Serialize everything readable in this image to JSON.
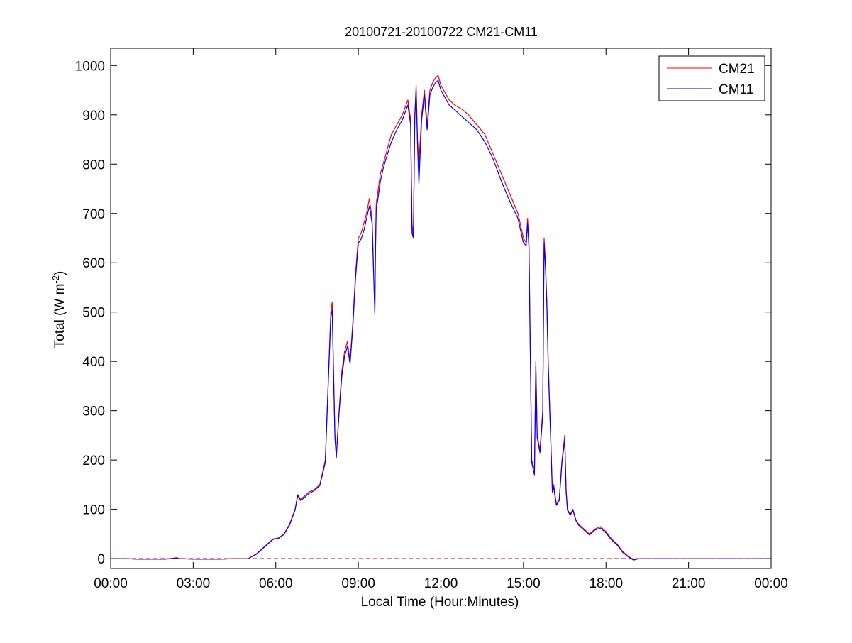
{
  "chart_data": {
    "type": "line",
    "title": "20100721-20100722 CM21-CM11",
    "xlabel": "Local Time (Hour:Minutes)",
    "ylabel_main": "Total (W m",
    "ylabel_sup": "-2",
    "ylabel_close": ")",
    "xlim_hours": [
      0,
      24
    ],
    "ylim": [
      -20,
      1035
    ],
    "x_ticks": [
      {
        "hour": 0,
        "label": "00:00"
      },
      {
        "hour": 3,
        "label": "03:00"
      },
      {
        "hour": 6,
        "label": "06:00"
      },
      {
        "hour": 9,
        "label": "09:00"
      },
      {
        "hour": 12,
        "label": "12:00"
      },
      {
        "hour": 15,
        "label": "15:00"
      },
      {
        "hour": 18,
        "label": "18:00"
      },
      {
        "hour": 21,
        "label": "21:00"
      },
      {
        "hour": 24,
        "label": "00:00"
      }
    ],
    "y_ticks": [
      0,
      100,
      200,
      300,
      400,
      500,
      600,
      700,
      800,
      900,
      1000
    ],
    "legend_position": "top-right",
    "zero_line": {
      "value": 0,
      "color": "#cc0000",
      "style": "dashed"
    },
    "series": [
      {
        "name": "CM21",
        "color": "#ff0000",
        "x_hours": [
          0,
          0.5,
          1,
          2,
          2.4,
          2.5,
          3,
          4,
          4.5,
          5,
          5.3,
          5.6,
          5.9,
          6.1,
          6.3,
          6.5,
          6.7,
          6.8,
          6.9,
          7.0,
          7.2,
          7.4,
          7.6,
          7.8,
          7.9,
          8.0,
          8.05,
          8.1,
          8.15,
          8.2,
          8.3,
          8.4,
          8.5,
          8.6,
          8.7,
          8.8,
          8.9,
          9.0,
          9.1,
          9.2,
          9.3,
          9.4,
          9.5,
          9.6,
          9.62,
          9.65,
          9.7,
          9.8,
          9.9,
          10.0,
          10.2,
          10.4,
          10.6,
          10.8,
          10.9,
          10.95,
          11.0,
          11.05,
          11.1,
          11.15,
          11.2,
          11.3,
          11.4,
          11.5,
          11.6,
          11.7,
          11.8,
          11.9,
          12.0,
          12.1,
          12.3,
          12.5,
          12.8,
          13.0,
          13.3,
          13.6,
          13.9,
          14.2,
          14.5,
          14.8,
          15.0,
          15.1,
          15.15,
          15.2,
          15.3,
          15.4,
          15.45,
          15.5,
          15.6,
          15.7,
          15.75,
          15.8,
          15.85,
          15.9,
          16.0,
          16.05,
          16.1,
          16.15,
          16.2,
          16.3,
          16.4,
          16.5,
          16.55,
          16.6,
          16.7,
          16.8,
          16.9,
          17.0,
          17.2,
          17.4,
          17.6,
          17.8,
          18.0,
          18.2,
          18.4,
          18.6,
          18.8,
          19.0,
          19.2,
          19.5,
          20,
          21,
          22,
          23,
          24
        ],
        "values": [
          0,
          0,
          -1,
          -1,
          2,
          0,
          -1,
          -1,
          0,
          0,
          10,
          25,
          40,
          42,
          50,
          70,
          100,
          130,
          120,
          125,
          135,
          140,
          150,
          200,
          350,
          500,
          520,
          380,
          250,
          210,
          300,
          380,
          420,
          440,
          400,
          480,
          580,
          650,
          660,
          680,
          700,
          730,
          690,
          500,
          620,
          720,
          740,
          780,
          800,
          820,
          860,
          880,
          900,
          930,
          890,
          680,
          650,
          900,
          960,
          850,
          800,
          900,
          950,
          880,
          950,
          965,
          975,
          980,
          960,
          950,
          930,
          920,
          910,
          900,
          880,
          860,
          820,
          780,
          740,
          700,
          650,
          640,
          690,
          640,
          200,
          180,
          400,
          250,
          220,
          300,
          650,
          600,
          520,
          400,
          230,
          140,
          150,
          130,
          110,
          120,
          200,
          250,
          140,
          100,
          90,
          100,
          80,
          70,
          60,
          50,
          60,
          65,
          55,
          40,
          30,
          15,
          5,
          -2,
          0,
          0,
          0,
          0,
          0,
          0,
          0
        ]
      },
      {
        "name": "CM11",
        "color": "#0000ff",
        "x_hours": [
          0,
          0.5,
          1,
          2,
          2.4,
          2.5,
          3,
          4,
          4.5,
          5,
          5.3,
          5.6,
          5.9,
          6.1,
          6.3,
          6.5,
          6.7,
          6.8,
          6.9,
          7.0,
          7.2,
          7.4,
          7.6,
          7.8,
          7.9,
          8.0,
          8.05,
          8.1,
          8.15,
          8.2,
          8.3,
          8.4,
          8.5,
          8.6,
          8.7,
          8.8,
          8.9,
          9.0,
          9.1,
          9.2,
          9.3,
          9.4,
          9.5,
          9.6,
          9.62,
          9.65,
          9.7,
          9.8,
          9.9,
          10.0,
          10.2,
          10.4,
          10.6,
          10.8,
          10.9,
          10.95,
          11.0,
          11.05,
          11.1,
          11.15,
          11.2,
          11.3,
          11.4,
          11.5,
          11.6,
          11.7,
          11.8,
          11.9,
          12.0,
          12.1,
          12.3,
          12.5,
          12.8,
          13.0,
          13.3,
          13.6,
          13.9,
          14.2,
          14.5,
          14.8,
          15.0,
          15.1,
          15.15,
          15.2,
          15.3,
          15.4,
          15.45,
          15.5,
          15.6,
          15.7,
          15.75,
          15.8,
          15.85,
          15.9,
          16.0,
          16.05,
          16.1,
          16.15,
          16.2,
          16.3,
          16.4,
          16.5,
          16.55,
          16.6,
          16.7,
          16.8,
          16.9,
          17.0,
          17.2,
          17.4,
          17.6,
          17.8,
          18.0,
          18.2,
          18.4,
          18.6,
          18.8,
          19.0,
          19.2,
          19.5,
          20,
          21,
          22,
          23,
          24
        ],
        "values": [
          0,
          0,
          -1,
          -1,
          1,
          0,
          -1,
          -1,
          0,
          0,
          9,
          24,
          39,
          41,
          49,
          68,
          98,
          128,
          118,
          122,
          132,
          138,
          148,
          195,
          345,
          490,
          505,
          370,
          245,
          205,
          295,
          370,
          410,
          430,
          395,
          470,
          570,
          640,
          648,
          665,
          690,
          715,
          680,
          495,
          610,
          710,
          725,
          765,
          790,
          810,
          845,
          870,
          890,
          920,
          880,
          660,
          650,
          890,
          950,
          840,
          760,
          890,
          940,
          870,
          940,
          955,
          965,
          970,
          950,
          940,
          920,
          910,
          895,
          885,
          870,
          845,
          810,
          765,
          725,
          690,
          640,
          635,
          680,
          630,
          195,
          170,
          390,
          245,
          215,
          290,
          640,
          590,
          515,
          390,
          225,
          135,
          145,
          125,
          108,
          118,
          195,
          240,
          135,
          98,
          88,
          98,
          78,
          68,
          58,
          48,
          58,
          62,
          52,
          38,
          28,
          13,
          4,
          -3,
          0,
          0,
          0,
          0,
          0,
          0,
          0
        ]
      }
    ]
  }
}
